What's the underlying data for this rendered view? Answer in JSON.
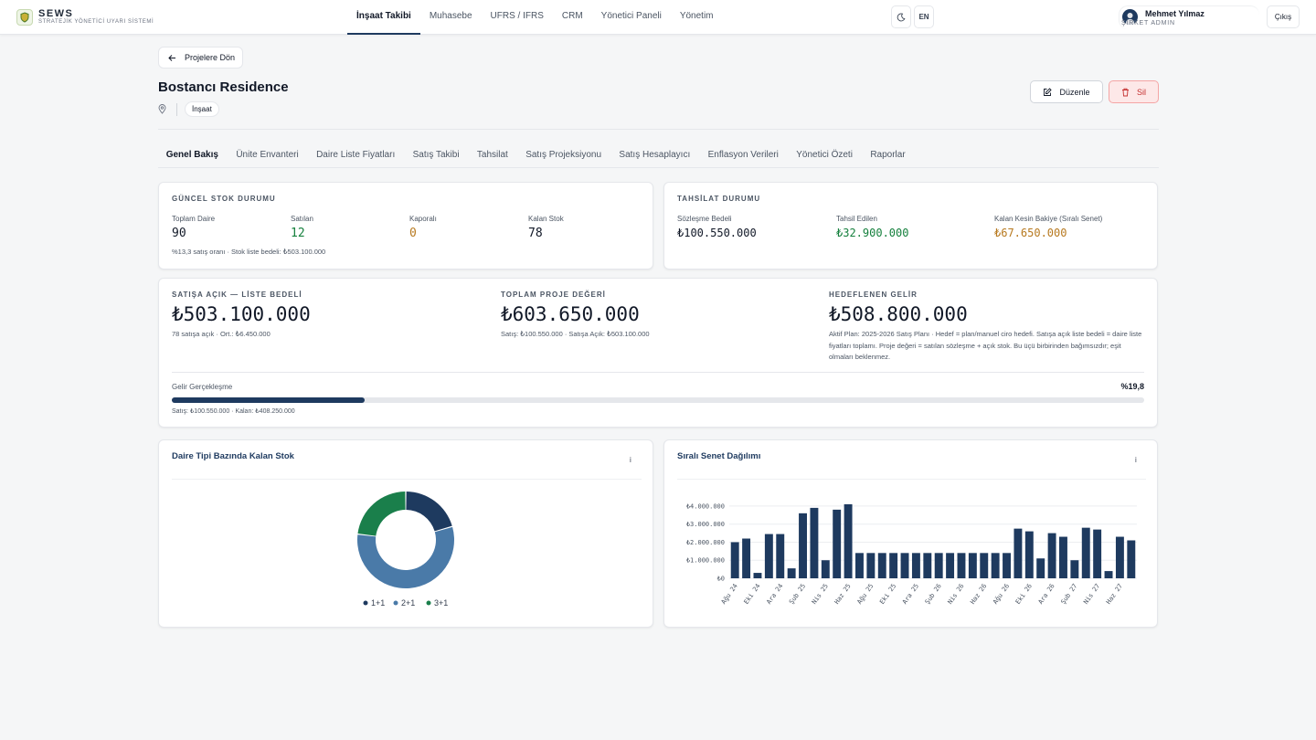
{
  "brand": {
    "name": "SEWS",
    "subtitle": "STRATEJİK YÖNETİCİ UYARI SİSTEMİ"
  },
  "nav": [
    {
      "label": "İnşaat Takibi",
      "active": true
    },
    {
      "label": "Muhasebe"
    },
    {
      "label": "UFRS / IFRS"
    },
    {
      "label": "CRM"
    },
    {
      "label": "Yönetici Paneli"
    },
    {
      "label": "Yönetim"
    }
  ],
  "header_tools": {
    "theme_icon": "moon-icon",
    "language": "EN"
  },
  "user": {
    "name": "Mehmet Yılmaz",
    "role": "ŞİRKET ADMIN",
    "logout": "Çıkış"
  },
  "project": {
    "back_label": "Projelere Dön",
    "title": "Bostancı Residence",
    "tag": "İnşaat",
    "edit_label": "Düzenle",
    "delete_label": "Sil"
  },
  "tabs": [
    {
      "label": "Genel Bakış",
      "active": true
    },
    {
      "label": "Ünite Envanteri"
    },
    {
      "label": "Daire Liste Fiyatları"
    },
    {
      "label": "Satış Takibi"
    },
    {
      "label": "Tahsilat"
    },
    {
      "label": "Satış Projeksiyonu"
    },
    {
      "label": "Satış Hesaplayıcı"
    },
    {
      "label": "Enflasyon Verileri"
    },
    {
      "label": "Yönetici Özeti"
    },
    {
      "label": "Raporlar"
    }
  ],
  "stock": {
    "heading": "GÜNCEL STOK DURUMU",
    "items": [
      {
        "label": "Toplam Daire",
        "value": "90",
        "color": "#111827"
      },
      {
        "label": "Satılan",
        "value": "12",
        "color": "#15803d"
      },
      {
        "label": "Kaporalı",
        "value": "0",
        "color": "#b7791f"
      },
      {
        "label": "Kalan Stok",
        "value": "78",
        "color": "#111827"
      }
    ],
    "note": "%13,3 satış oranı · Stok liste bedeli: ₺503.100.000"
  },
  "collection": {
    "heading": "TAHSİLAT DURUMU",
    "items": [
      {
        "label": "Sözleşme Bedeli",
        "value": "₺100.550.000",
        "color": "#111827"
      },
      {
        "label": "Tahsil Edilen",
        "value": "₺32.900.000",
        "color": "#15803d"
      },
      {
        "label": "Kalan Kesin Bakiye (Sıralı Senet)",
        "value": "₺67.650.000",
        "color": "#b7791f"
      }
    ]
  },
  "summary": {
    "open_for_sale": {
      "label": "SATIŞA AÇIK — LİSTE BEDELİ",
      "value": "₺503.100.000",
      "note": "78 satışa açık · Ort.: ₺6.450.000"
    },
    "total_value": {
      "label": "TOPLAM PROJE DEĞERİ",
      "value": "₺603.650.000",
      "note": "Satış: ₺100.550.000 · Satışa Açık: ₺503.100.000"
    },
    "target_income": {
      "label": "HEDEFLENEN GELİR",
      "value": "₺508.800.000",
      "note": "Aktif Plan: 2025-2026 Satış Planı · Hedef = plan/manuel ciro hedefi. Satışa açık liste bedeli = daire liste fiyatları toplamı. Proje değeri = satılan sözleşme + açık stok. Bu üçü birbirinden bağımsızdır; eşit olmaları beklenmez."
    },
    "realization": {
      "label": "Gelir Gerçekleşme",
      "percent_text": "%19,8",
      "fraction": 0.198,
      "note": "Satış: ₺100.550.000 · Kalan: ₺408.250.000"
    }
  },
  "donut": {
    "title": "Daire Tipi Bazında Kalan Stok",
    "info": "i",
    "chart_data": {
      "type": "pie",
      "categories": [
        "1+1",
        "2+1",
        "3+1"
      ],
      "values": [
        16,
        44,
        18
      ],
      "colors": [
        "#1e3a5f",
        "#4a7aa8",
        "#1a7f4b"
      ]
    }
  },
  "bars": {
    "title": "Sıralı Senet Dağılımı",
    "info": "i",
    "chart_data": {
      "type": "bar",
      "x": [
        "Ağu 24",
        "Eyl 24",
        "Eki 24",
        "Kas 24",
        "Ara 24",
        "Oca 25",
        "Şub 25",
        "Mar 25",
        "Nis 25",
        "May 25",
        "Haz 25",
        "Tem 25",
        "Ağu 25",
        "Eyl 25",
        "Eki 25",
        "Kas 25",
        "Ara 25",
        "Oca 26",
        "Şub 26",
        "Mar 26",
        "Nis 26",
        "May 26",
        "Haz 26",
        "Tem 26",
        "Ağu 26",
        "Eyl 26",
        "Eki 26",
        "Kas 26",
        "Ara 26",
        "Oca 27",
        "Şub 27",
        "Mar 27",
        "Nis 27",
        "May 27",
        "Haz 27",
        "Tem 27"
      ],
      "x_tick_labels": [
        "Ağu 24",
        "Eki 24",
        "Ara 24",
        "Şub 25",
        "Nis 25",
        "Haz 25",
        "Ağu 25",
        "Eki 25",
        "Ara 25",
        "Şub 26",
        "Nis 26",
        "Haz 26",
        "Ağu 26",
        "Eki 26",
        "Ara 26",
        "Şub 27",
        "Nis 27",
        "Haz 27"
      ],
      "values": [
        2000000,
        2200000,
        300000,
        2450000,
        2450000,
        550000,
        3600000,
        3900000,
        1000000,
        3800000,
        4100000,
        1400000,
        1400000,
        1400000,
        1400000,
        1400000,
        1400000,
        1400000,
        1400000,
        1400000,
        1400000,
        1400000,
        1400000,
        1400000,
        1400000,
        2750000,
        2600000,
        1100000,
        2500000,
        2300000,
        1000000,
        2800000,
        2700000,
        400000,
        2300000,
        2100000
      ],
      "ylim": [
        0,
        4300000
      ],
      "yticks": [
        0,
        1000000,
        2000000,
        3000000,
        4000000
      ],
      "ytick_labels": [
        "₺0",
        "₺1.000.000",
        "₺2.000.000",
        "₺3.000.000",
        "₺4.000.000"
      ],
      "color": "#1e3a5f",
      "grid": true
    }
  }
}
